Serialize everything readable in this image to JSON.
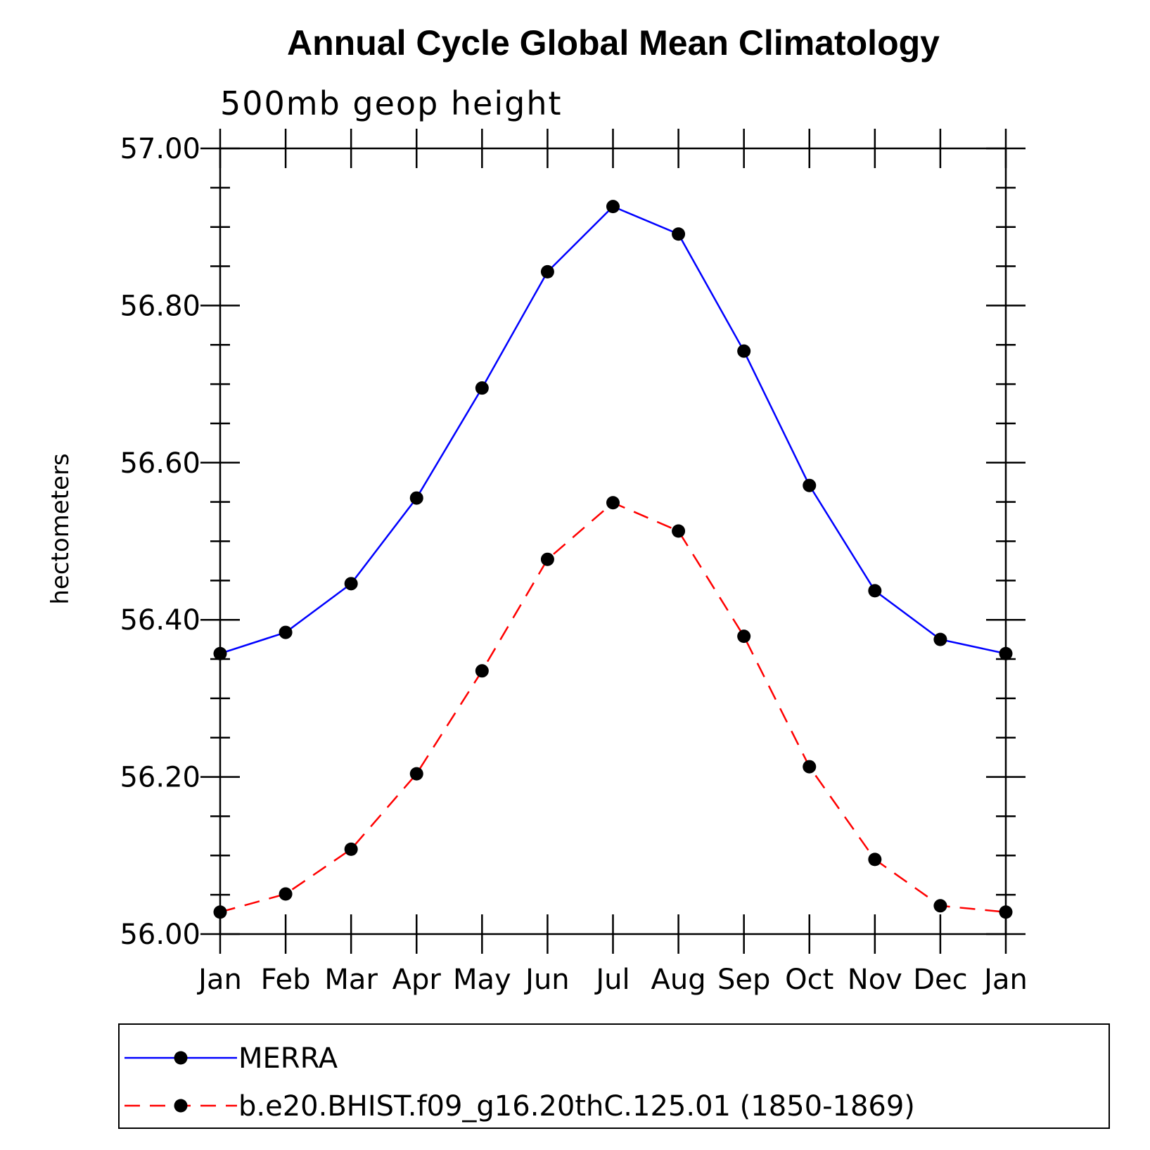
{
  "chart_data": {
    "type": "line",
    "title": "Annual Cycle Global Mean Climatology",
    "subtitle": "500mb  geop  height",
    "xlabel": "",
    "ylabel": "hectometers",
    "categories": [
      "Jan",
      "Feb",
      "Mar",
      "Apr",
      "May",
      "Jun",
      "Jul",
      "Aug",
      "Sep",
      "Oct",
      "Nov",
      "Dec",
      "Jan"
    ],
    "ylim": [
      56.0,
      57.0
    ],
    "yticks": [
      56.0,
      56.2,
      56.4,
      56.6,
      56.8,
      57.0
    ],
    "ytick_labels": [
      "56.00",
      "56.20",
      "56.40",
      "56.60",
      "56.80",
      "57.00"
    ],
    "y_minor_step": 0.05,
    "grid": false,
    "legend_position": "bottom",
    "series": [
      {
        "name": "MERRA",
        "color": "#0000ff",
        "dash": "solid",
        "marker": "filled-circle",
        "values": [
          56.357,
          56.384,
          56.446,
          56.555,
          56.695,
          56.843,
          56.926,
          56.891,
          56.742,
          56.571,
          56.437,
          56.375,
          56.357
        ]
      },
      {
        "name": "b.e20.BHIST.f09_g16.20thC.125.01 (1850-1869)",
        "color": "#ff0000",
        "dash": "dashed",
        "marker": "filled-circle",
        "values": [
          56.028,
          56.051,
          56.108,
          56.204,
          56.335,
          56.477,
          56.549,
          56.513,
          56.379,
          56.213,
          56.095,
          56.036,
          56.028
        ]
      }
    ]
  }
}
